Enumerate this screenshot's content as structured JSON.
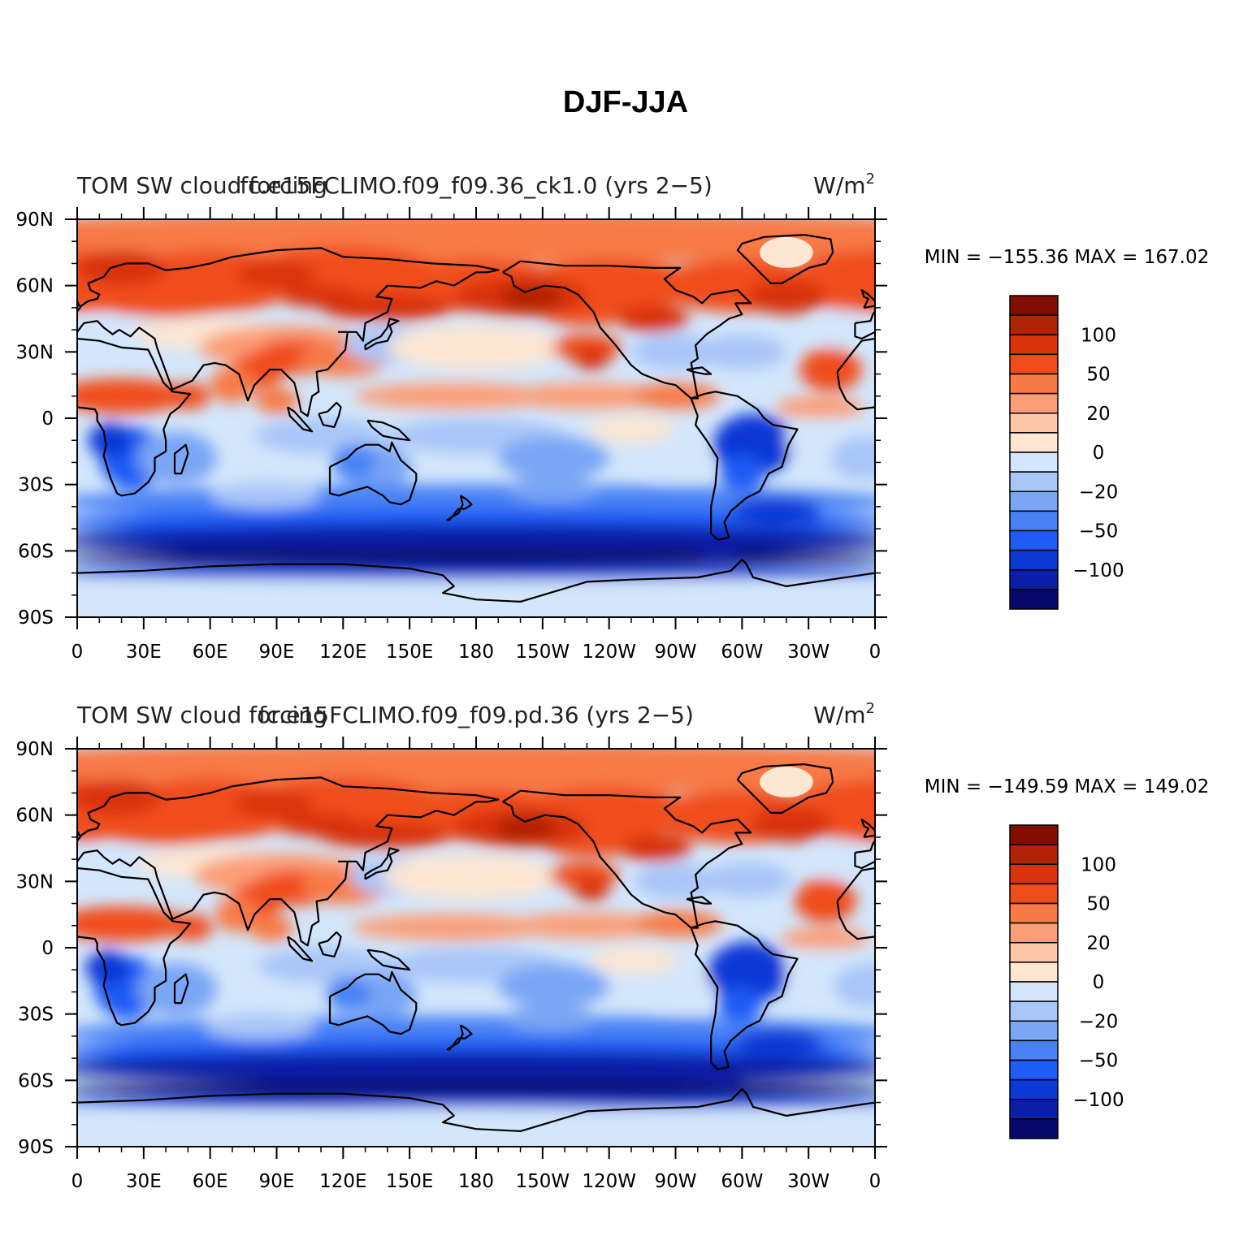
{
  "figure": {
    "title": "DJF-JJA",
    "colorbar_colors": [
      "#08086b",
      "#0a1ea6",
      "#0c38d6",
      "#1e5cf5",
      "#4a82f5",
      "#7aa6f5",
      "#a9c6f8",
      "#d3e6fb",
      "#fde6d2",
      "#fcc6a8",
      "#fb9e78",
      "#f77a46",
      "#f04d1c",
      "#d8330a",
      "#b12305",
      "#820e02"
    ],
    "colorbar_labels": [
      "−100",
      "−50",
      "−20",
      "0",
      "20",
      "50",
      "100"
    ],
    "lat_ticks": [
      "90N",
      "60N",
      "30N",
      "0",
      "30S",
      "60S",
      "90S"
    ],
    "lon_ticks": [
      "0",
      "30E",
      "60E",
      "90E",
      "120E",
      "150E",
      "180",
      "150W",
      "120W",
      "90W",
      "60W",
      "30W",
      "0"
    ],
    "colors": {
      "warm": "#f77a46",
      "cold": "#0c38d6",
      "coast": "#000000"
    }
  },
  "panels": [
    {
      "left_label": "TOM SW cloud forcing",
      "center_label": "fc.e15FCLIMO.f09_f09.36_ck1.0 (yrs 2−5)",
      "units": "W/m",
      "units_sup": "2",
      "stats": "MIN = −155.36  MAX = 167.02"
    },
    {
      "left_label": "TOM SW cloud forcing",
      "center_label": "fc.e15FCLIMO.f09_f09.pd.36 (yrs 2−5)",
      "units": "W/m",
      "units_sup": "2",
      "stats": "MIN = −149.59  MAX = 149.02"
    }
  ]
}
